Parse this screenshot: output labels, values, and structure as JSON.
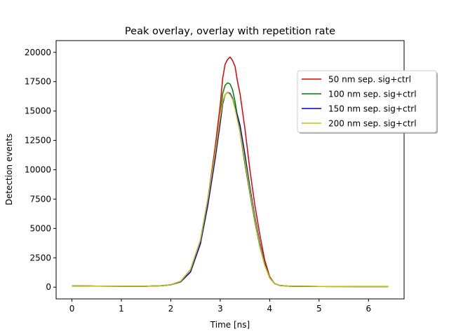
{
  "chart_data": {
    "type": "line",
    "title": "Peak overlay, overlay with repetition rate",
    "xlabel": "Time [ns]",
    "ylabel": "Detection events",
    "xlim": [
      -0.32,
      6.72
    ],
    "ylim": [
      -1000,
      21000
    ],
    "xticks": [
      0,
      1,
      2,
      3,
      4,
      5,
      6
    ],
    "yticks": [
      0,
      2500,
      5000,
      7500,
      10000,
      12500,
      15000,
      17500,
      20000
    ],
    "grid": false,
    "legend_position": "upper right",
    "series": [
      {
        "name": "50 nm sep. sig+ctrl",
        "color": "#e00000",
        "x": [
          0,
          0.5,
          1.0,
          1.5,
          1.8,
          2.0,
          2.2,
          2.4,
          2.6,
          2.75,
          2.9,
          3.0,
          3.05,
          3.1,
          3.15,
          3.2,
          3.25,
          3.3,
          3.35,
          3.4,
          3.5,
          3.6,
          3.7,
          3.8,
          3.9,
          4.0,
          4.1,
          4.2,
          4.4,
          5.0,
          6.0,
          6.4
        ],
        "y": [
          100,
          90,
          80,
          80,
          120,
          200,
          500,
          1500,
          4000,
          7500,
          12000,
          15500,
          17800,
          19000,
          19400,
          19600,
          19300,
          18800,
          17500,
          16500,
          13500,
          10000,
          7000,
          4500,
          2300,
          900,
          300,
          150,
          80,
          60,
          50,
          50
        ]
      },
      {
        "name": "100 nm sep. sig+ctrl",
        "color": "#008000",
        "x": [
          0,
          0.5,
          1.0,
          1.5,
          1.8,
          2.0,
          2.2,
          2.4,
          2.6,
          2.75,
          2.9,
          3.0,
          3.05,
          3.1,
          3.15,
          3.2,
          3.25,
          3.3,
          3.35,
          3.4,
          3.5,
          3.6,
          3.7,
          3.8,
          3.9,
          4.0,
          4.1,
          4.2,
          4.4,
          5.0,
          6.0,
          6.4
        ],
        "y": [
          100,
          90,
          80,
          80,
          120,
          200,
          500,
          1500,
          4000,
          7500,
          11500,
          14500,
          16500,
          17200,
          17400,
          17300,
          16800,
          15800,
          14500,
          13200,
          10500,
          8000,
          5600,
          3500,
          1900,
          800,
          300,
          150,
          80,
          60,
          50,
          50
        ]
      },
      {
        "name": "150 nm sep. sig+ctrl",
        "color": "#0000cc",
        "x": [
          0,
          0.5,
          1.0,
          1.5,
          1.8,
          2.0,
          2.2,
          2.4,
          2.6,
          2.75,
          2.9,
          3.0,
          3.05,
          3.1,
          3.15,
          3.2,
          3.25,
          3.3,
          3.35,
          3.4,
          3.5,
          3.6,
          3.7,
          3.8,
          3.9,
          4.0,
          4.1,
          4.2,
          4.4,
          5.0,
          6.0,
          6.4
        ],
        "y": [
          100,
          90,
          80,
          80,
          120,
          200,
          450,
          1300,
          3700,
          7000,
          11000,
          14000,
          15600,
          16400,
          16600,
          16500,
          16100,
          15300,
          14600,
          13800,
          11300,
          8500,
          6000,
          3800,
          2000,
          800,
          300,
          150,
          80,
          60,
          50,
          50
        ]
      },
      {
        "name": "200 nm sep. sig+ctrl",
        "color": "#c8c000",
        "x": [
          0,
          0.5,
          1.0,
          1.5,
          1.8,
          2.0,
          2.2,
          2.4,
          2.6,
          2.75,
          2.9,
          3.0,
          3.05,
          3.1,
          3.15,
          3.2,
          3.25,
          3.3,
          3.35,
          3.4,
          3.5,
          3.6,
          3.7,
          3.8,
          3.9,
          4.0,
          4.1,
          4.2,
          4.4,
          5.0,
          6.0,
          6.4
        ],
        "y": [
          100,
          90,
          80,
          80,
          120,
          200,
          500,
          1500,
          4000,
          7500,
          11500,
          14500,
          15800,
          16400,
          16600,
          16400,
          16000,
          15200,
          14200,
          13200,
          10800,
          8200,
          5800,
          3600,
          1900,
          800,
          300,
          150,
          80,
          60,
          50,
          50
        ]
      }
    ]
  }
}
